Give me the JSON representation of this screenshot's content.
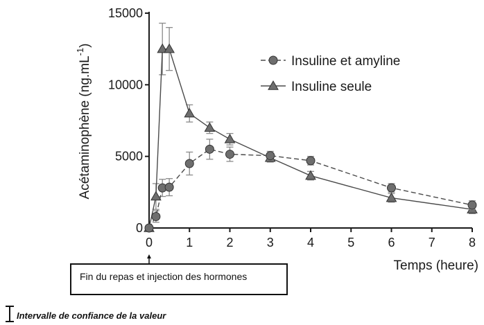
{
  "chart_data": {
    "type": "line",
    "xlabel": "Temps (heure)",
    "ylabel_main": "Acétaminophène (ng.mL",
    "ylabel_sup": "-1",
    "ylabel_close": ")",
    "xlim": [
      0,
      8
    ],
    "ylim": [
      0,
      15000
    ],
    "xticks": [
      0,
      1,
      2,
      3,
      4,
      5,
      6,
      7,
      8
    ],
    "yticks": [
      0,
      5000,
      10000,
      15000
    ],
    "grid": false,
    "legend_position": "top-right",
    "series": [
      {
        "name": "Insuline et amyline",
        "marker": "circle",
        "line_style": "dashed",
        "x": [
          0,
          0.17,
          0.33,
          0.5,
          1,
          1.5,
          2,
          3,
          4,
          6,
          8
        ],
        "y": [
          0,
          800,
          2800,
          2850,
          4500,
          5500,
          5150,
          5050,
          4700,
          2800,
          1600
        ],
        "err": [
          0,
          400,
          600,
          600,
          800,
          700,
          500,
          300,
          300,
          300,
          300
        ]
      },
      {
        "name": "Insuline seule",
        "marker": "triangle",
        "line_style": "solid",
        "x": [
          0,
          0.17,
          0.33,
          0.5,
          1,
          1.5,
          2,
          3,
          4,
          6,
          8
        ],
        "y": [
          0,
          2200,
          12500,
          12500,
          8000,
          7000,
          6200,
          4900,
          3650,
          2100,
          1300
        ],
        "err": [
          0,
          900,
          1800,
          1500,
          600,
          400,
          400,
          300,
          300,
          300,
          300
        ]
      }
    ]
  },
  "colors": {
    "line": "#4a4a4a",
    "marker_fill": "#6e6e6e",
    "error_bar": "#8a8a8a",
    "axis": "#1a1a1a"
  },
  "annotation": {
    "text": "Fin du repas et injection des hormones"
  },
  "ci_legend": {
    "text": "Intervalle de confiance de la valeur",
    "icon": "error-bar-icon"
  }
}
